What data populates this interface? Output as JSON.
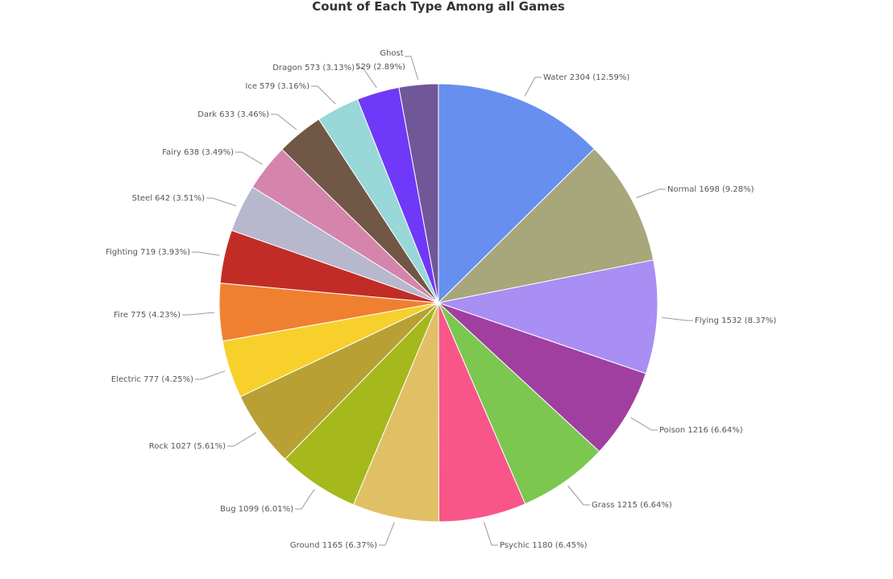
{
  "chart_data": {
    "type": "pie",
    "title": "Count of Each Type Among all Games",
    "slices": [
      {
        "label": "Water",
        "value": 2304,
        "pct": "12.59%",
        "color": "#668FF0"
      },
      {
        "label": "Normal",
        "value": 1698,
        "pct": "9.28%",
        "color": "#A8A67B"
      },
      {
        "label": "Flying",
        "value": 1532,
        "pct": "8.37%",
        "color": "#A98EF3"
      },
      {
        "label": "Poison",
        "value": 1216,
        "pct": "6.64%",
        "color": "#A03FA0"
      },
      {
        "label": "Grass",
        "value": 1215,
        "pct": "6.64%",
        "color": "#7BC74F"
      },
      {
        "label": "Psychic",
        "value": 1180,
        "pct": "6.45%",
        "color": "#F85689"
      },
      {
        "label": "Ground",
        "value": 1165,
        "pct": "6.37%",
        "color": "#E1BF65"
      },
      {
        "label": "Bug",
        "value": 1099,
        "pct": "6.01%",
        "color": "#A5B81C"
      },
      {
        "label": "Rock",
        "value": 1027,
        "pct": "5.61%",
        "color": "#B8A035"
      },
      {
        "label": "Electric",
        "value": 777,
        "pct": "4.25%",
        "color": "#F7D02B"
      },
      {
        "label": "Fire",
        "value": 775,
        "pct": "4.23%",
        "color": "#EF8030"
      },
      {
        "label": "Fighting",
        "value": 719,
        "pct": "3.93%",
        "color": "#C12D26"
      },
      {
        "label": "Steel",
        "value": 642,
        "pct": "3.51%",
        "color": "#B7B7CE"
      },
      {
        "label": "Fairy",
        "value": 638,
        "pct": "3.49%",
        "color": "#D585AC"
      },
      {
        "label": "Dark",
        "value": 633,
        "pct": "3.46%",
        "color": "#705746"
      },
      {
        "label": "Ice",
        "value": 579,
        "pct": "3.16%",
        "color": "#98D8D8"
      },
      {
        "label": "Dragon",
        "value": 573,
        "pct": "3.13%",
        "color": "#7038F8"
      },
      {
        "label": "Ghost",
        "value": 529,
        "pct": "2.89%",
        "color": "#705898"
      }
    ]
  }
}
